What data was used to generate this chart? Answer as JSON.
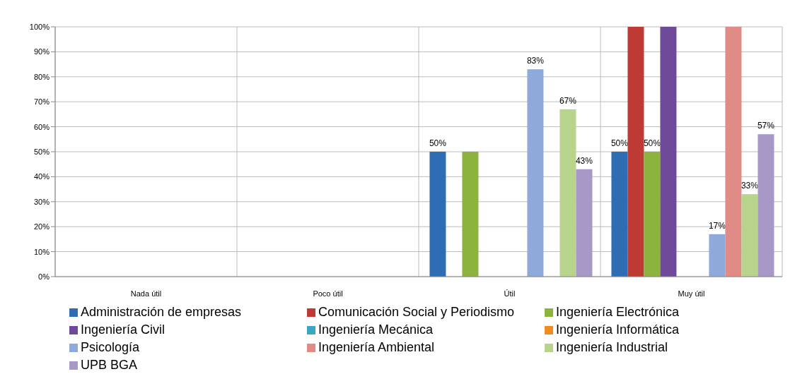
{
  "chart_data": {
    "type": "bar",
    "categories": [
      "Nada útil",
      "Poco útil",
      "Útil",
      "Muy útil"
    ],
    "ylim": [
      0,
      100
    ],
    "yticks": [
      {
        "value": 0,
        "label": "0%"
      },
      {
        "value": 10,
        "label": "10%"
      },
      {
        "value": 20,
        "label": "20%"
      },
      {
        "value": 30,
        "label": "30%"
      },
      {
        "value": 40,
        "label": "40%"
      },
      {
        "value": 50,
        "label": "50%"
      },
      {
        "value": 60,
        "label": "60%"
      },
      {
        "value": 70,
        "label": "70%"
      },
      {
        "value": 80,
        "label": "80%"
      },
      {
        "value": 90,
        "label": "90%"
      },
      {
        "value": 100,
        "label": "100%"
      }
    ],
    "grid": true,
    "legend": "bottom",
    "series": [
      {
        "name": "Administración de empresas",
        "color": "#2e6db4",
        "values": [
          null,
          null,
          50,
          50
        ],
        "value_labels": [
          null,
          null,
          "50%",
          "50%"
        ]
      },
      {
        "name": "Comunicación Social y Periodismo",
        "color": "#be3a34",
        "values": [
          null,
          null,
          null,
          100
        ]
      },
      {
        "name": "Ingeniería Electrónica",
        "color": "#8cb33e",
        "values": [
          null,
          null,
          50,
          50
        ],
        "value_labels": [
          null,
          null,
          null,
          "50%"
        ]
      },
      {
        "name": "Ingeniería Civil",
        "color": "#6f4a9a",
        "values": [
          null,
          null,
          null,
          100
        ]
      },
      {
        "name": "Ingeniería Mecánica",
        "color": "#3aa6c3",
        "values": [
          null,
          null,
          null,
          null
        ]
      },
      {
        "name": "Ingeniería Informática",
        "color": "#f08a24",
        "values": [
          null,
          null,
          null,
          null
        ]
      },
      {
        "name": "Psicología",
        "color": "#8eaadb",
        "values": [
          null,
          null,
          83,
          17
        ],
        "value_labels": [
          null,
          null,
          "83%",
          "17%"
        ]
      },
      {
        "name": "Ingeniería Ambiental",
        "color": "#e08b86",
        "values": [
          null,
          null,
          null,
          100
        ]
      },
      {
        "name": "Ingeniería Industrial",
        "color": "#b8d38c",
        "values": [
          null,
          null,
          67,
          33
        ],
        "value_labels": [
          null,
          null,
          "67%",
          "33%"
        ]
      },
      {
        "name": "UPB BGA",
        "color": "#a898c8",
        "values": [
          null,
          null,
          43,
          57
        ],
        "value_labels": [
          null,
          null,
          "43%",
          "57%"
        ]
      }
    ]
  }
}
